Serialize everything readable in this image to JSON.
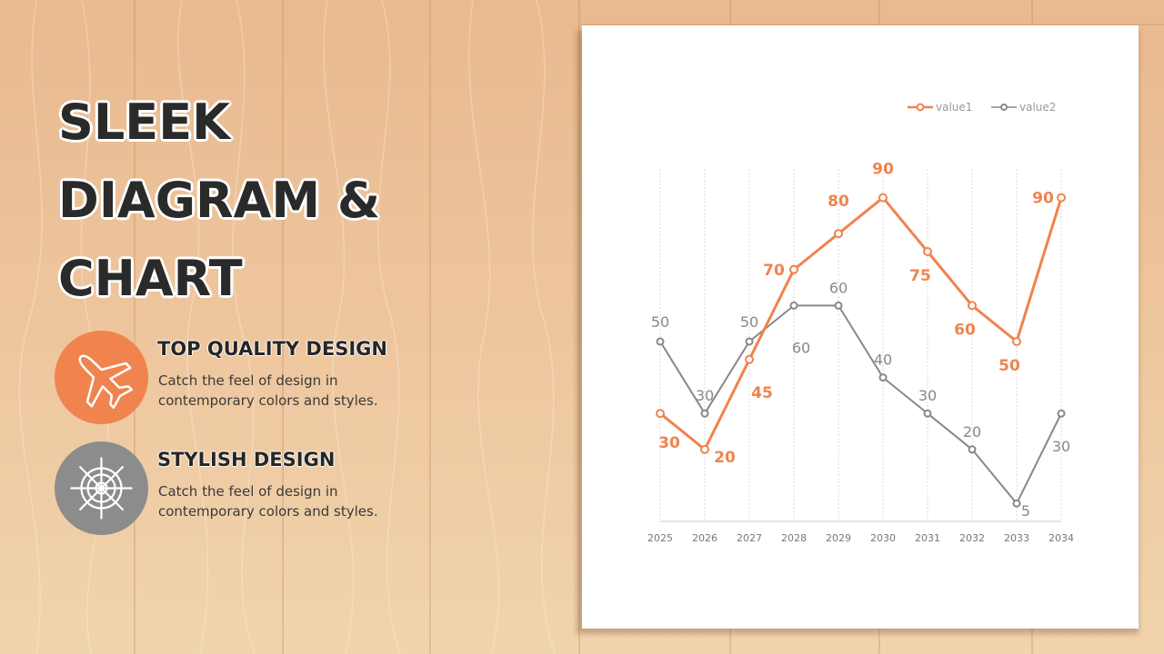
{
  "title_lines": [
    "SLEEK",
    "DIAGRAM &",
    "CHART"
  ],
  "features": [
    {
      "title": "TOP QUALITY DESIGN",
      "description": "Catch the feel of design in contemporary colors and styles.",
      "icon": "airplane-icon",
      "color": "#f0834e"
    },
    {
      "title": "STYLISH DESIGN",
      "description": "Catch the feel of design in contemporary colors and styles.",
      "icon": "ship-wheel-icon",
      "color": "#8c8c8c"
    }
  ],
  "colors": {
    "accent_orange": "#f0834e",
    "accent_gray": "#888888"
  },
  "chart_data": {
    "type": "line",
    "x": [
      "2025",
      "2026",
      "2027",
      "2028",
      "2029",
      "2030",
      "2031",
      "2032",
      "2033",
      "2034"
    ],
    "ylim": [
      0,
      100
    ],
    "grid": "vertical",
    "legend_position": "top-right",
    "series": [
      {
        "name": "value1",
        "color": "#f0834e",
        "values": [
          30,
          20,
          45,
          70,
          80,
          90,
          75,
          60,
          50,
          90
        ]
      },
      {
        "name": "value2",
        "color": "#888888",
        "values": [
          50,
          30,
          50,
          60,
          60,
          40,
          30,
          20,
          5,
          30
        ]
      }
    ]
  }
}
